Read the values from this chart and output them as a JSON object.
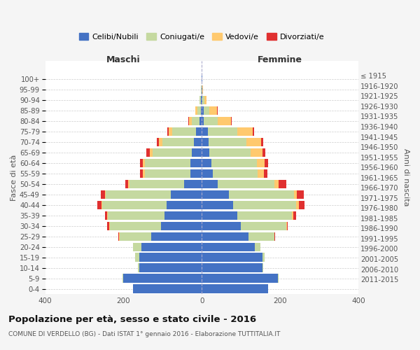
{
  "age_groups": [
    "0-4",
    "5-9",
    "10-14",
    "15-19",
    "20-24",
    "25-29",
    "30-34",
    "35-39",
    "40-44",
    "45-49",
    "50-54",
    "55-59",
    "60-64",
    "65-69",
    "70-74",
    "75-79",
    "80-84",
    "85-89",
    "90-94",
    "95-99",
    "100+"
  ],
  "birth_years": [
    "2011-2015",
    "2006-2010",
    "2001-2005",
    "1996-2000",
    "1991-1995",
    "1986-1990",
    "1981-1985",
    "1976-1980",
    "1971-1975",
    "1966-1970",
    "1961-1965",
    "1956-1960",
    "1951-1955",
    "1946-1950",
    "1941-1945",
    "1936-1940",
    "1931-1935",
    "1926-1930",
    "1921-1925",
    "1916-1920",
    "≤ 1915"
  ],
  "maschi": {
    "celibi": [
      175,
      200,
      160,
      160,
      155,
      130,
      105,
      95,
      90,
      80,
      45,
      30,
      30,
      25,
      20,
      15,
      5,
      3,
      2,
      1,
      1
    ],
    "coniugati": [
      0,
      2,
      3,
      10,
      20,
      80,
      130,
      145,
      165,
      165,
      140,
      115,
      115,
      100,
      80,
      60,
      20,
      8,
      3,
      1,
      0
    ],
    "vedovi": [
      0,
      0,
      0,
      0,
      0,
      1,
      1,
      2,
      2,
      3,
      3,
      5,
      5,
      8,
      10,
      10,
      8,
      5,
      1,
      0,
      0
    ],
    "divorziati": [
      0,
      0,
      0,
      0,
      0,
      2,
      5,
      5,
      10,
      10,
      8,
      8,
      8,
      8,
      5,
      3,
      1,
      0,
      0,
      0,
      0
    ]
  },
  "femmine": {
    "nubili": [
      170,
      195,
      155,
      155,
      135,
      120,
      100,
      90,
      80,
      70,
      40,
      28,
      25,
      20,
      18,
      15,
      5,
      4,
      2,
      1,
      1
    ],
    "coniugate": [
      0,
      1,
      2,
      5,
      15,
      65,
      115,
      140,
      160,
      165,
      145,
      115,
      115,
      105,
      95,
      75,
      35,
      15,
      5,
      1,
      0
    ],
    "vedove": [
      0,
      0,
      0,
      0,
      0,
      1,
      2,
      3,
      8,
      8,
      12,
      15,
      20,
      30,
      38,
      40,
      35,
      20,
      5,
      1,
      0
    ],
    "divorziate": [
      0,
      0,
      0,
      0,
      0,
      1,
      3,
      8,
      15,
      18,
      18,
      10,
      10,
      8,
      5,
      3,
      2,
      1,
      0,
      0,
      0
    ]
  },
  "colors": {
    "celibi": "#4472c4",
    "coniugati": "#c5d9a0",
    "vedovi": "#ffc96e",
    "divorziati": "#e03030"
  },
  "title": "Popolazione per età, sesso e stato civile - 2016",
  "subtitle": "COMUNE DI VERDELLO (BG) - Dati ISTAT 1° gennaio 2016 - Elaborazione TUTTITALIA.IT",
  "xlabel_maschi": "Maschi",
  "xlabel_femmine": "Femmine",
  "ylabel_left": "Fasce di età",
  "ylabel_right": "Anni di nascita",
  "legend_labels": [
    "Celibi/Nubili",
    "Coniugati/e",
    "Vedovi/e",
    "Divorziati/e"
  ],
  "xlim": 400,
  "background_color": "#f5f5f5",
  "plot_bg_color": "#ffffff"
}
